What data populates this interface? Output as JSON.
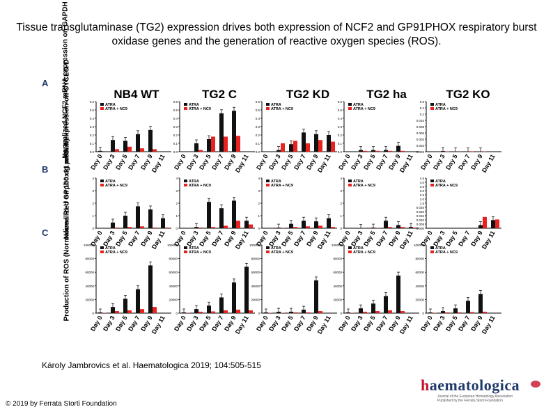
{
  "title": "Tissue transglutaminase (TG2) expression drives both expression of NCF2 and GP91PHOX respiratory burst oxidase genes and the generation of reactive oxygen species (ROS).",
  "panel_letters": [
    "A",
    "B",
    "C"
  ],
  "row_ylabels": [
    "Normalized NCF2 mRNA expression on GAPDH",
    "Normalized GPphox91 mRNA expression on CYCLO-D",
    "Production of ROS (Normalized RLU on 100 ug protein)"
  ],
  "col_titles": [
    "NB4 WT",
    "TG2 C",
    "TG2 KD",
    "TG2 ha",
    "TG2 KO"
  ],
  "citation": "Károly Jambrovics et al. Haematologica 2019; 104:505-515",
  "copyright": "© 2019 by Ferrata Storti Foundation",
  "logo": {
    "wordmark_h": "h",
    "wordmark_rest": "aematologica",
    "sub1": "Journal of the European Hematology Association",
    "sub2": "Published by the Ferrata Storti Foundation"
  },
  "colors": {
    "atra": "#111111",
    "nc9": "#e8231f",
    "title_letters": "#1f3a6b",
    "logo_red": "#c8102e"
  },
  "chart_data": {
    "type": "bar",
    "categories": [
      "Day 0",
      "Day 3",
      "Day 5",
      "Day 7",
      "Day 9",
      "Day 11"
    ],
    "series_names": [
      "ATRA",
      "ATRA + NC9"
    ],
    "panels": [
      {
        "row": "A",
        "title": "NB4 WT",
        "yticks": [
          "0.0",
          "0.1",
          "0.2",
          "0.3",
          "0.4",
          "0.5",
          "0.6"
        ],
        "ylim": [
          0,
          0.6
        ],
        "series": [
          {
            "name": "ATRA",
            "values": [
              0.01,
              0.14,
              0.13,
              0.21,
              0.26,
              0.0
            ]
          },
          {
            "name": "ATRA + NC9",
            "values": [
              0.0,
              0.03,
              0.06,
              0.04,
              0.03,
              0.0
            ]
          }
        ]
      },
      {
        "row": "A",
        "title": "TG2 C",
        "yticks": [
          "0.0",
          "0.1",
          "0.2",
          "0.3",
          "0.4",
          "0.5",
          "0.6"
        ],
        "ylim": [
          0,
          0.6
        ],
        "series": [
          {
            "name": "ATRA",
            "values": [
              0.0,
              0.1,
              0.15,
              0.46,
              0.49,
              0.0
            ]
          },
          {
            "name": "ATRA + NC9",
            "values": [
              0.0,
              0.02,
              0.18,
              0.18,
              0.19,
              0.0
            ]
          }
        ]
      },
      {
        "row": "A",
        "title": "TG2 KD",
        "yticks": [
          "0.0",
          "0.1",
          "0.2",
          "0.3",
          "0.4",
          "0.5",
          "0.6"
        ],
        "ylim": [
          0,
          0.6
        ],
        "series": [
          {
            "name": "ATRA",
            "values": [
              0.0,
              0.02,
              0.09,
              0.23,
              0.21,
              0.2
            ]
          },
          {
            "name": "ATRA + NC9",
            "values": [
              0.0,
              0.1,
              0.13,
              0.1,
              0.14,
              0.12
            ]
          }
        ]
      },
      {
        "row": "A",
        "title": "TG2 ha",
        "yticks": [
          "0.0",
          "0.1",
          "0.2",
          "0.3",
          "0.4",
          "0.5",
          "0.6"
        ],
        "ylim": [
          0,
          0.6
        ],
        "series": [
          {
            "name": "ATRA",
            "values": [
              0.0,
              0.02,
              0.02,
              0.02,
              0.07,
              0.0
            ]
          },
          {
            "name": "ATRA + NC9",
            "values": [
              0.0,
              0.01,
              0.01,
              0.01,
              0.01,
              0.0
            ]
          }
        ]
      },
      {
        "row": "A",
        "title": "TG2 KO",
        "yticks": [
          "0.000",
          "0.002",
          "0.004",
          "0.006",
          "0.008",
          "0.010",
          "0.2",
          "0.4",
          "0.6"
        ],
        "ylim": [
          0,
          0.6
        ],
        "series": [
          {
            "name": "ATRA",
            "values": [
              0.0,
              0.008,
              0.003,
              0.004,
              0.004,
              0.0
            ]
          },
          {
            "name": "ATRA + NC9",
            "values": [
              0.0,
              0.003,
              0.001,
              0.005,
              0.003,
              0.0
            ]
          }
        ]
      },
      {
        "row": "B",
        "title": "NB4 WT",
        "yticks": [
          "0",
          "1",
          "2",
          "3",
          "4"
        ],
        "ylim": [
          0,
          4
        ],
        "series": [
          {
            "name": "ATRA",
            "values": [
              0.0,
              0.45,
              1.0,
              1.75,
              1.5,
              0.8
            ]
          },
          {
            "name": "ATRA + NC9",
            "values": [
              0.0,
              0.05,
              0.1,
              0.15,
              0.05,
              0.05
            ]
          }
        ]
      },
      {
        "row": "B",
        "title": "TG2 C",
        "yticks": [
          "0",
          "1",
          "2",
          "3",
          "4"
        ],
        "ylim": [
          0,
          4
        ],
        "series": [
          {
            "name": "ATRA",
            "values": [
              0.0,
              0.1,
              2.1,
              1.6,
              2.2,
              0.6
            ]
          },
          {
            "name": "ATRA + NC9",
            "values": [
              0.0,
              0.05,
              0.1,
              0.2,
              0.6,
              0.3
            ]
          }
        ]
      },
      {
        "row": "B",
        "title": "TG2 KD",
        "yticks": [
          "0",
          "1",
          "2",
          "3",
          "4"
        ],
        "ylim": [
          0,
          4
        ],
        "series": [
          {
            "name": "ATRA",
            "values": [
              0.0,
              0.05,
              0.35,
              0.6,
              0.55,
              0.8
            ]
          },
          {
            "name": "ATRA + NC9",
            "values": [
              0.0,
              0.02,
              0.1,
              0.15,
              0.2,
              0.1
            ]
          }
        ]
      },
      {
        "row": "B",
        "title": "TG2 ha",
        "yticks": [
          "0",
          "1",
          "2",
          "3",
          "4"
        ],
        "ylim": [
          0,
          4
        ],
        "series": [
          {
            "name": "ATRA",
            "values": [
              0.0,
              0.02,
              0.05,
              0.6,
              0.25,
              0.1
            ]
          },
          {
            "name": "ATRA + NC9",
            "values": [
              0.0,
              0.01,
              0.02,
              0.1,
              0.1,
              0.05
            ]
          }
        ]
      },
      {
        "row": "B",
        "title": "TG2 KO",
        "yticks": [
          "0.000",
          "0.005",
          "0.010",
          "0.015",
          "0.020",
          "0.025",
          "1.5",
          "2.0",
          "2.5",
          "3.0",
          "3.5",
          "4.0",
          "4.5"
        ],
        "ylim": [
          0,
          4
        ],
        "series": [
          {
            "name": "ATRA",
            "values": [
              0.0,
              0.0,
              0.0,
              0.0,
              0.25,
              0.65
            ]
          },
          {
            "name": "ATRA + NC9",
            "values": [
              0.0,
              0.0,
              0.0,
              0.0,
              0.9,
              0.7
            ]
          }
        ]
      },
      {
        "row": "C",
        "title": "NB4 WT",
        "yticks": [
          "0",
          "20000",
          "40000",
          "60000",
          "80000",
          "100000"
        ],
        "ylim": [
          0,
          100000
        ],
        "series": [
          {
            "name": "ATRA",
            "values": [
              1000,
              9000,
              21000,
              35000,
              70000,
              0
            ]
          },
          {
            "name": "ATRA + NC9",
            "values": [
              500,
              3000,
              4000,
              6000,
              9000,
              0
            ]
          }
        ]
      },
      {
        "row": "C",
        "title": "TG2 C",
        "yticks": [
          "0",
          "20000",
          "40000",
          "60000",
          "80000",
          "100000"
        ],
        "ylim": [
          0,
          100000
        ],
        "series": [
          {
            "name": "ATRA",
            "values": [
              1000,
              6000,
              11000,
              23000,
              45000,
              68000
            ]
          },
          {
            "name": "ATRA + NC9",
            "values": [
              500,
              2000,
              2500,
              4000,
              5000,
              4000
            ]
          }
        ]
      },
      {
        "row": "C",
        "title": "TG2 KD",
        "yticks": [
          "0",
          "20000",
          "40000",
          "60000",
          "80000",
          "100000"
        ],
        "ylim": [
          0,
          100000
        ],
        "series": [
          {
            "name": "ATRA",
            "values": [
              1000,
              2000,
              2000,
              5000,
              48000,
              0
            ]
          },
          {
            "name": "ATRA + NC9",
            "values": [
              500,
              500,
              1000,
              1000,
              3000,
              0
            ]
          }
        ]
      },
      {
        "row": "C",
        "title": "TG2 ha",
        "yticks": [
          "0",
          "20000",
          "40000",
          "60000",
          "80000",
          "100000"
        ],
        "ylim": [
          0,
          100000
        ],
        "series": [
          {
            "name": "ATRA",
            "values": [
              1000,
              7000,
              14000,
              25000,
              55000,
              0
            ]
          },
          {
            "name": "ATRA + NC9",
            "values": [
              500,
              2000,
              3000,
              4000,
              3000,
              0
            ]
          }
        ]
      },
      {
        "row": "C",
        "title": "TG2 KO",
        "yticks": [
          "0",
          "20000",
          "40000",
          "60000",
          "80000",
          "100000"
        ],
        "ylim": [
          0,
          100000
        ],
        "series": [
          {
            "name": "ATRA",
            "values": [
              1000,
              3000,
              7000,
              18000,
              28000,
              0
            ]
          },
          {
            "name": "ATRA + NC9",
            "values": [
              500,
              1000,
              1000,
              1500,
              2000,
              0
            ]
          }
        ]
      }
    ]
  }
}
